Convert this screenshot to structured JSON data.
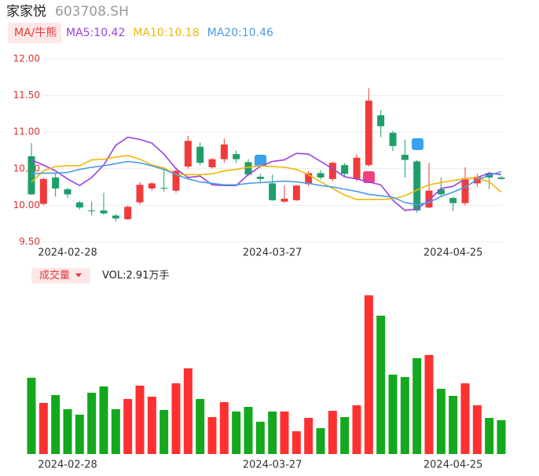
{
  "header": {
    "name": "家家悦",
    "code": "603708.SH",
    "ma_button": "MA/牛熊",
    "volume_button": "成交量"
  },
  "chart_data": {
    "type": "candlestick",
    "categories": [
      null,
      null,
      null,
      "2024-02-28",
      null,
      null,
      null,
      null,
      null,
      null,
      null,
      null,
      null,
      null,
      null,
      null,
      null,
      null,
      null,
      null,
      "2024-03-27",
      null,
      null,
      null,
      null,
      null,
      null,
      null,
      null,
      null,
      null,
      null,
      null,
      null,
      null,
      "2024-04-25",
      null,
      null,
      null,
      null
    ],
    "open": [
      10.67,
      10.02,
      10.38,
      10.22,
      10.04,
      9.93,
      9.93,
      9.86,
      9.81,
      10.04,
      10.23,
      10.24,
      10.2,
      10.53,
      10.8,
      10.52,
      10.63,
      10.7,
      10.59,
      10.39,
      10.3,
      10.05,
      10.07,
      10.29,
      10.44,
      10.36,
      10.55,
      10.36,
      10.55,
      11.23,
      10.99,
      10.69,
      10.6,
      9.97,
      10.22,
      10.1,
      10.03,
      10.3,
      10.44,
      10.38
    ],
    "high": [
      10.85,
      10.38,
      10.43,
      10.24,
      10.06,
      10.05,
      10.17,
      9.88,
      10.0,
      10.32,
      10.32,
      10.52,
      10.52,
      10.95,
      10.86,
      10.65,
      10.91,
      10.75,
      10.63,
      10.43,
      10.42,
      10.27,
      10.28,
      10.47,
      10.48,
      10.6,
      10.58,
      10.7,
      11.6,
      11.3,
      11.02,
      10.9,
      10.62,
      10.58,
      10.38,
      10.12,
      10.52,
      10.43,
      10.46,
      10.4
    ],
    "low": [
      10.14,
      10.0,
      10.12,
      10.1,
      9.94,
      9.86,
      9.87,
      9.78,
      9.8,
      10.01,
      10.2,
      10.19,
      10.17,
      10.5,
      10.55,
      10.5,
      10.58,
      10.58,
      10.4,
      10.3,
      10.06,
      10.03,
      10.06,
      10.26,
      10.35,
      10.33,
      10.4,
      10.33,
      10.53,
      10.93,
      10.74,
      10.38,
      9.9,
      9.96,
      10.12,
      9.92,
      10.0,
      10.25,
      10.22,
      10.35
    ],
    "close": [
      10.15,
      10.36,
      10.23,
      10.15,
      9.97,
      9.92,
      9.89,
      9.82,
      9.98,
      10.28,
      10.3,
      10.23,
      10.47,
      10.88,
      10.58,
      10.63,
      10.83,
      10.63,
      10.42,
      10.36,
      10.07,
      10.09,
      10.27,
      10.44,
      10.38,
      10.58,
      10.43,
      10.65,
      11.43,
      11.08,
      10.81,
      10.62,
      9.93,
      10.2,
      10.15,
      10.03,
      10.37,
      10.39,
      10.38,
      10.36
    ],
    "up_color": "#f03b3b",
    "down_color": "#1f9e6a",
    "series": [
      {
        "name": "MA5:10.42",
        "color": "#9b3fe3",
        "values": [
          10.62,
          10.55,
          10.47,
          10.36,
          10.27,
          10.38,
          10.55,
          10.82,
          10.93,
          10.9,
          10.85,
          10.7,
          10.5,
          10.38,
          10.4,
          10.28,
          10.27,
          10.27,
          10.42,
          10.53,
          10.6,
          10.62,
          10.71,
          10.7,
          10.6,
          10.5,
          10.39,
          10.36,
          10.32,
          10.28,
          10.07,
          9.93,
          9.95,
          10.07,
          10.23,
          10.26,
          10.36,
          10.38,
          10.44,
          10.42
        ]
      },
      {
        "name": "MA10:10.18",
        "color": "#f2b705",
        "values": [
          10.32,
          10.47,
          10.53,
          10.54,
          10.54,
          10.62,
          10.63,
          10.66,
          10.68,
          10.63,
          10.55,
          10.51,
          10.42,
          10.42,
          10.42,
          10.43,
          10.47,
          10.49,
          10.52,
          10.54,
          10.53,
          10.52,
          10.49,
          10.42,
          10.32,
          10.23,
          10.14,
          10.08,
          10.08,
          10.08,
          10.09,
          10.13,
          10.21,
          10.28,
          10.31,
          10.34,
          10.36,
          10.38,
          10.32,
          10.18
        ]
      },
      {
        "name": "MA20:10.46",
        "color": "#4a9be8",
        "values": [
          10.43,
          10.44,
          10.44,
          10.45,
          10.49,
          10.52,
          10.54,
          10.57,
          10.6,
          10.58,
          10.54,
          10.49,
          10.42,
          10.36,
          10.32,
          10.3,
          10.28,
          10.28,
          10.3,
          10.31,
          10.32,
          10.33,
          10.32,
          10.3,
          10.27,
          10.25,
          10.22,
          10.19,
          10.15,
          10.13,
          10.11,
          10.04,
          10.01,
          10.04,
          10.12,
          10.18,
          10.25,
          10.35,
          10.41,
          10.46
        ]
      }
    ],
    "ylim": [
      9.5,
      12.0
    ],
    "yticks": [
      {
        "value": 9.5,
        "label": "9.50"
      },
      {
        "value": 10.0,
        "label": "10.00"
      },
      {
        "value": 10.5,
        "label": "10.50"
      },
      {
        "value": 11.0,
        "label": "11.00"
      },
      {
        "value": 11.5,
        "label": "11.50"
      },
      {
        "value": 12.0,
        "label": "12.00"
      }
    ],
    "grid": true,
    "volume": {
      "label": "VOL:2.91万手",
      "up_color": "#ff3030",
      "down_color": "#13a81e",
      "values": [
        6.57,
        4.4,
        5.08,
        3.86,
        3.39,
        5.28,
        5.82,
        3.86,
        4.74,
        5.89,
        4.94,
        3.79,
        6.09,
        7.38,
        4.74,
        3.18,
        4.47,
        3.66,
        4.06,
        2.78,
        3.66,
        3.66,
        1.96,
        3.11,
        2.23,
        3.72,
        3.18,
        4.2,
        13.67,
        11.92,
        6.84,
        6.63,
        8.26,
        8.53,
        5.62,
        5.01,
        6.09,
        4.2,
        3.11,
        2.91
      ]
    }
  }
}
